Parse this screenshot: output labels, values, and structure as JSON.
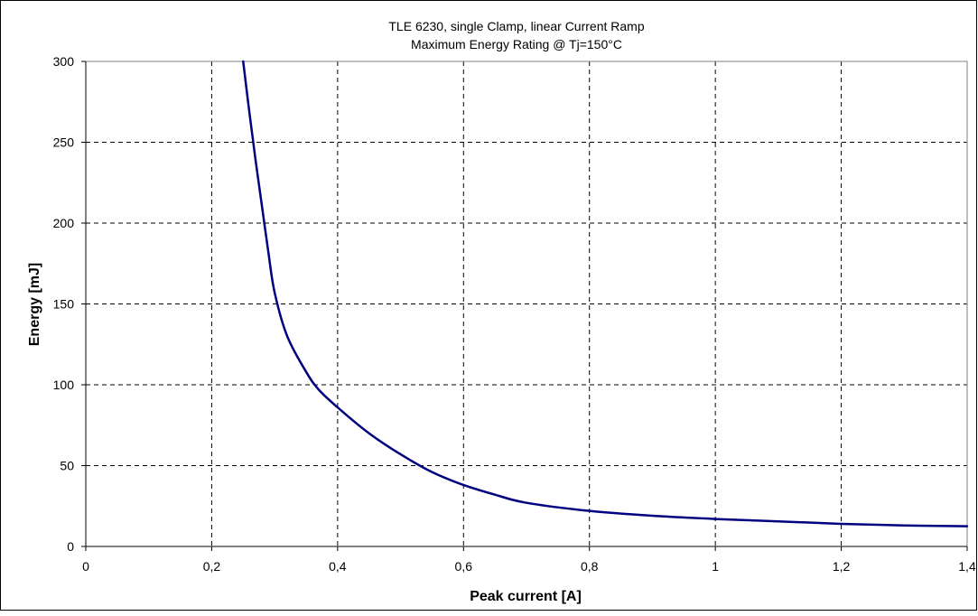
{
  "chart_data": {
    "type": "line",
    "title": "TLE 6230, single Clamp, linear Current Ramp",
    "subtitle": "Maximum Energy Rating @ Tj=150°C",
    "xlabel": "Peak current [A]",
    "ylabel": "Energy [mJ]",
    "xlim": [
      0,
      1.4
    ],
    "ylim": [
      0,
      300
    ],
    "x_ticks": [
      0,
      0.2,
      0.4,
      0.6,
      0.8,
      1.0,
      1.2,
      1.4
    ],
    "x_tick_labels": [
      "0",
      "0,2",
      "0,4",
      "0,6",
      "0,8",
      "1",
      "1,2",
      "1,4"
    ],
    "y_ticks": [
      0,
      50,
      100,
      150,
      200,
      250,
      300
    ],
    "y_tick_labels": [
      "0",
      "50",
      "100",
      "150",
      "200",
      "250",
      "300"
    ],
    "grid": true,
    "grid_style": "dashed",
    "series": [
      {
        "color": "#000080",
        "x": [
          0.25,
          0.26,
          0.27,
          0.28,
          0.29,
          0.3,
          0.32,
          0.35,
          0.37,
          0.4,
          0.45,
          0.5,
          0.55,
          0.6,
          0.65,
          0.7,
          0.8,
          0.9,
          1.0,
          1.1,
          1.2,
          1.3,
          1.4
        ],
        "y": [
          300,
          268,
          238,
          210,
          182,
          157,
          130,
          108,
          97,
          86,
          70,
          57,
          46,
          38,
          32,
          27,
          22,
          19,
          17,
          15.5,
          14,
          13,
          12.5
        ]
      }
    ]
  }
}
